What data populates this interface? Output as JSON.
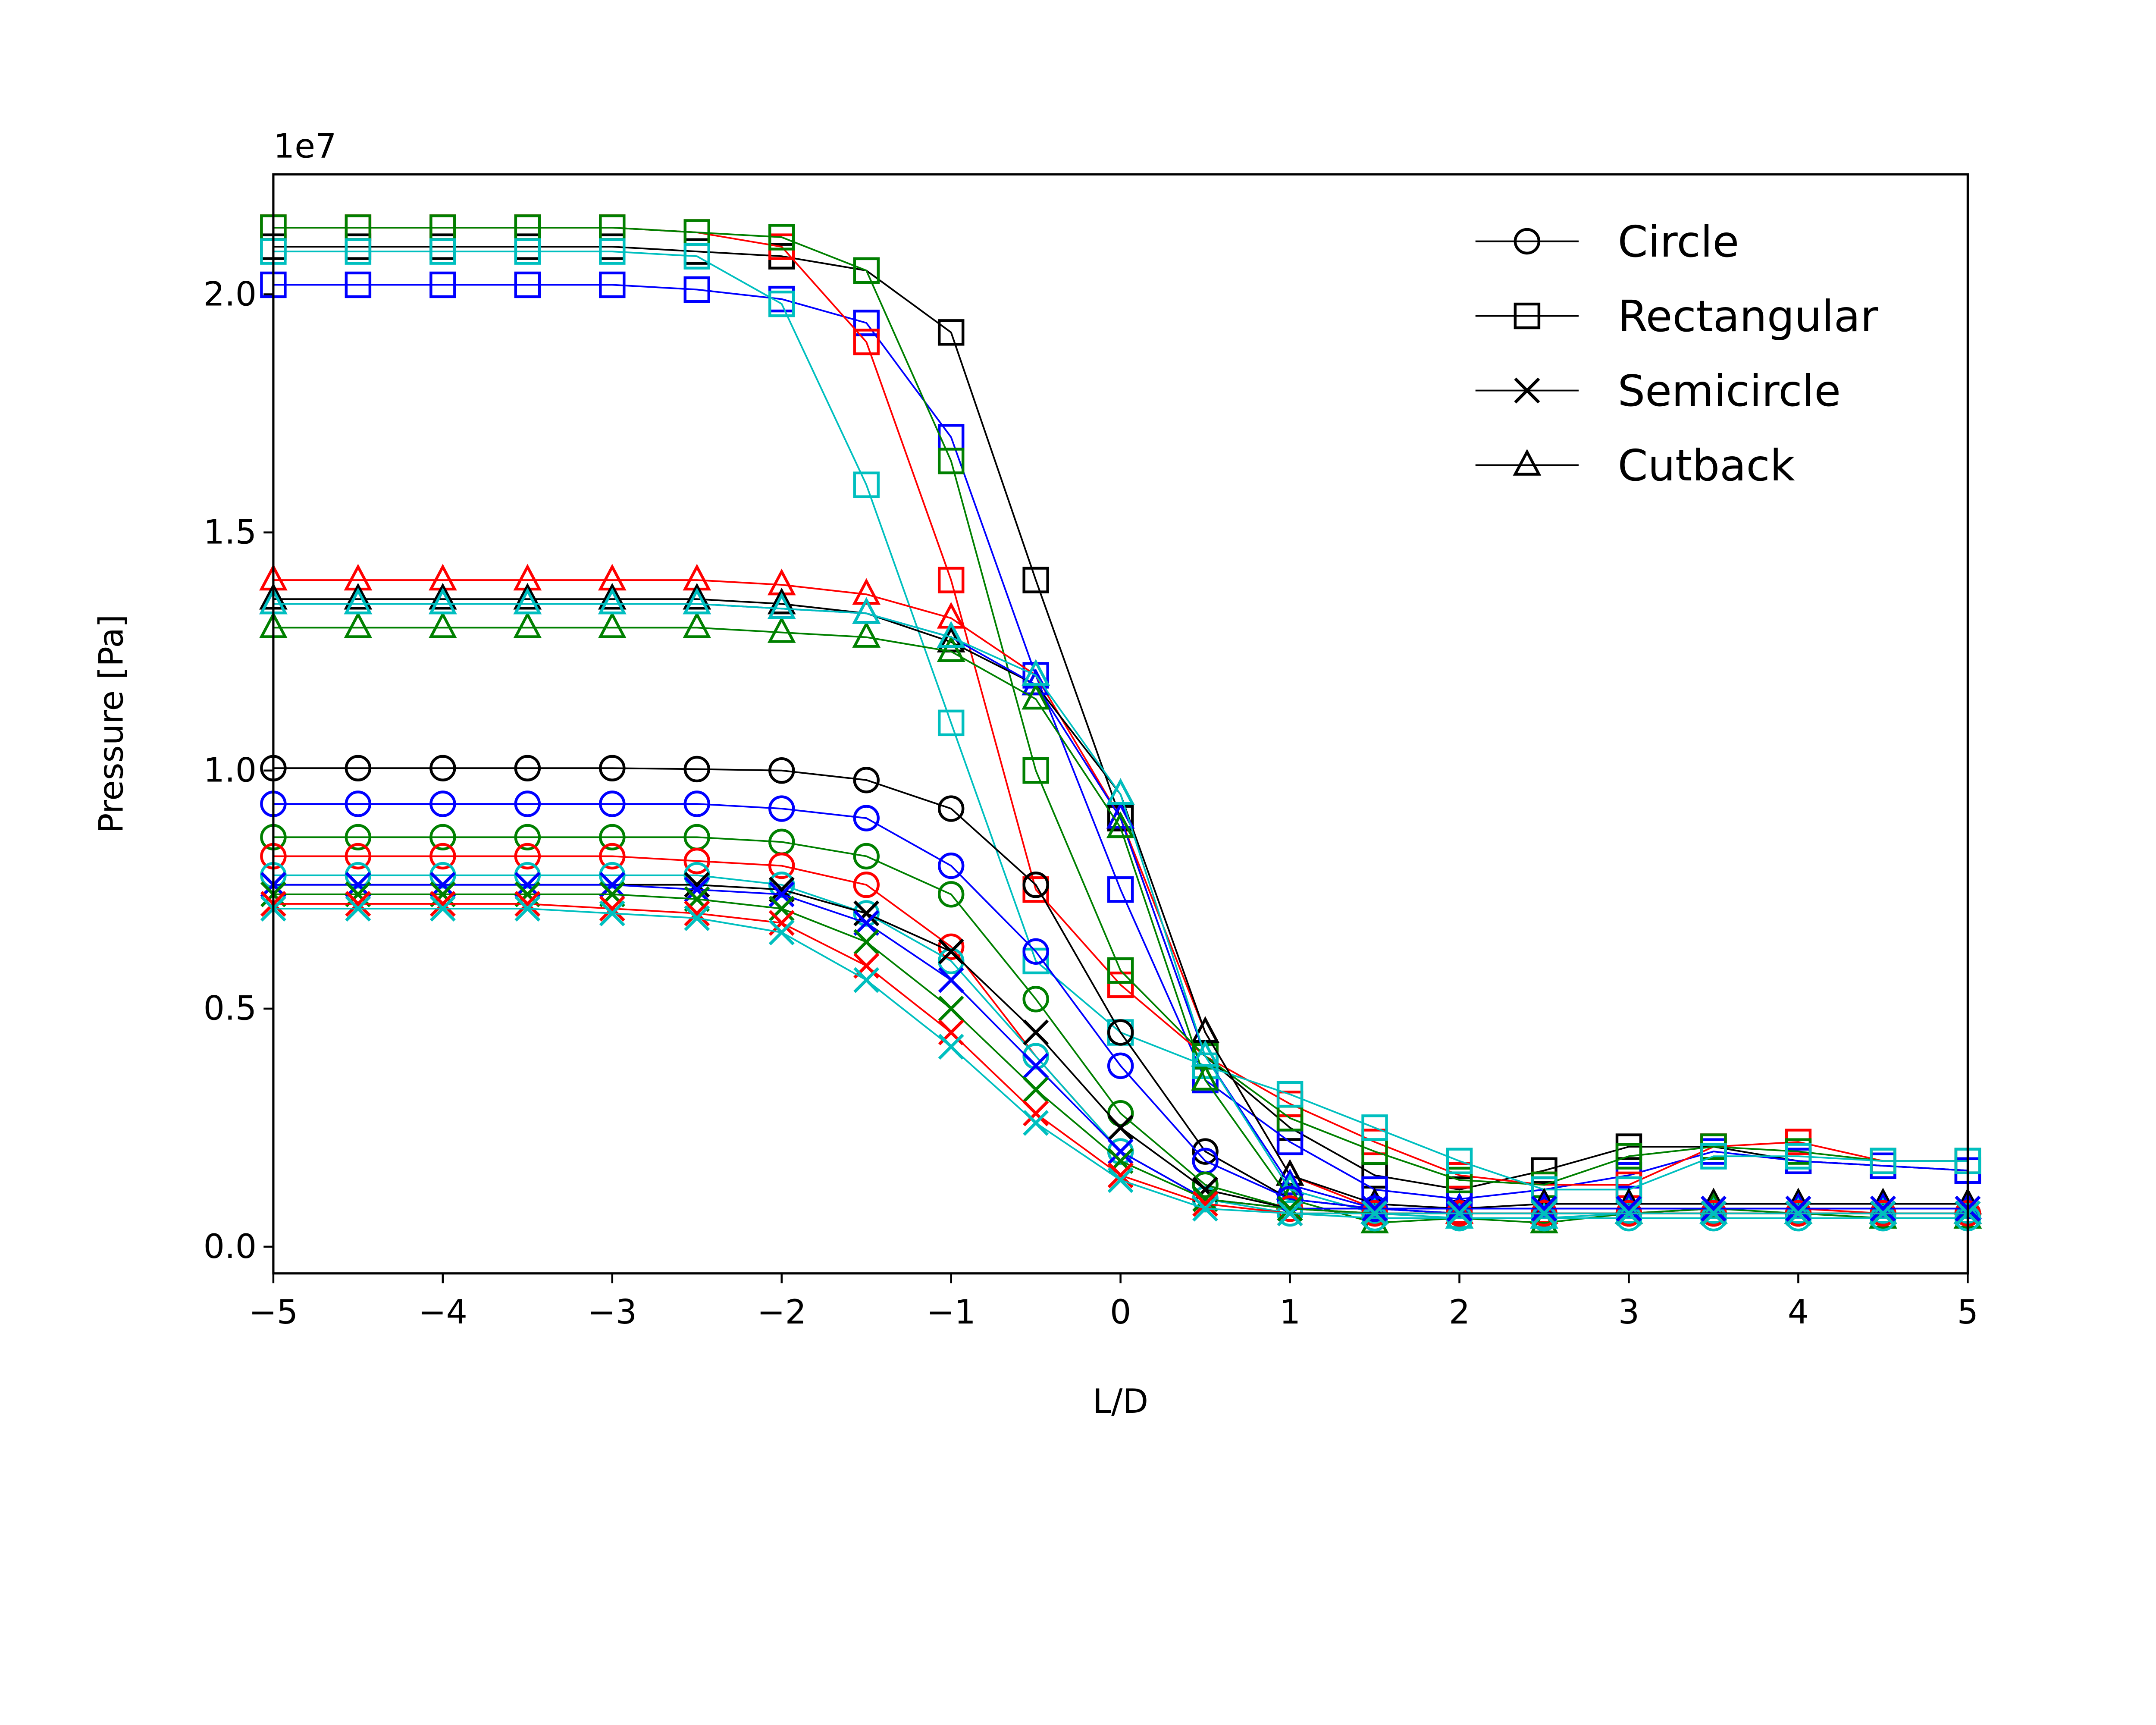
{
  "chart_data": {
    "type": "line",
    "title": "",
    "xlabel": "L/D",
    "ylabel": "Pressure [Pa]",
    "y_offset_label": "1e7",
    "y_scale": 10000000,
    "xlim": [
      -5,
      5
    ],
    "ylim": [
      -0.056,
      2.252
    ],
    "grid": false,
    "legend_placement": "top-right",
    "x_ticks": [
      -5,
      -4,
      -3,
      -2,
      -1,
      0,
      1,
      2,
      3,
      4,
      5
    ],
    "x_tick_labels": [
      "−5",
      "−4",
      "−3",
      "−2",
      "−1",
      "0",
      "1",
      "2",
      "3",
      "4",
      "5"
    ],
    "y_ticks": [
      0,
      0.5,
      1.0,
      1.5,
      2.0
    ],
    "y_tick_labels": [
      "0.0",
      "0.5",
      "1.0",
      "1.5",
      "2.0"
    ],
    "legend": [
      {
        "label": "Circle",
        "marker": "circle"
      },
      {
        "label": "Rectangular",
        "marker": "square"
      },
      {
        "label": "Semicircle",
        "marker": "x"
      },
      {
        "label": "Cutback",
        "marker": "triangle"
      }
    ],
    "colors": {
      "black": "#000000",
      "blue": "#0000ff",
      "red": "#ff0000",
      "green": "#008000",
      "cyan": "#00bfbf"
    },
    "x": [
      -5,
      -4.5,
      -4,
      -3.5,
      -3,
      -2.5,
      -2,
      -1.5,
      -1,
      -0.5,
      0,
      0.5,
      1,
      1.5,
      2,
      2.5,
      3,
      3.5,
      4,
      4.5,
      5
    ],
    "series": [
      {
        "shape": "Rectangular",
        "color": "black",
        "marker": "square",
        "values": [
          2.1,
          2.1,
          2.1,
          2.1,
          2.1,
          2.09,
          2.08,
          2.05,
          1.92,
          1.4,
          0.9,
          0.4,
          0.25,
          0.15,
          0.12,
          0.16,
          0.21,
          0.21,
          0.18,
          0.17,
          0.16
        ]
      },
      {
        "shape": "Rectangular",
        "color": "blue",
        "marker": "square",
        "values": [
          2.02,
          2.02,
          2.02,
          2.02,
          2.02,
          2.01,
          1.99,
          1.94,
          1.7,
          1.2,
          0.75,
          0.35,
          0.22,
          0.12,
          0.1,
          0.12,
          0.15,
          0.2,
          0.18,
          0.17,
          0.16
        ]
      },
      {
        "shape": "Rectangular",
        "color": "red",
        "marker": "square",
        "values": [
          2.14,
          2.14,
          2.14,
          2.14,
          2.14,
          2.13,
          2.1,
          1.9,
          1.4,
          0.75,
          0.55,
          0.4,
          0.3,
          0.22,
          0.15,
          0.13,
          0.13,
          0.21,
          0.22,
          0.18,
          0.18
        ]
      },
      {
        "shape": "Rectangular",
        "color": "green",
        "marker": "square",
        "values": [
          2.14,
          2.14,
          2.14,
          2.14,
          2.14,
          2.13,
          2.12,
          2.05,
          1.65,
          1.0,
          0.58,
          0.4,
          0.27,
          0.2,
          0.14,
          0.13,
          0.19,
          0.21,
          0.2,
          0.18,
          0.18
        ]
      },
      {
        "shape": "Rectangular",
        "color": "cyan",
        "marker": "square",
        "values": [
          2.09,
          2.09,
          2.09,
          2.09,
          2.09,
          2.08,
          1.98,
          1.6,
          1.1,
          0.6,
          0.45,
          0.38,
          0.32,
          0.25,
          0.18,
          0.12,
          0.12,
          0.19,
          0.19,
          0.18,
          0.18
        ]
      },
      {
        "shape": "Cutback",
        "color": "red",
        "marker": "triangle",
        "values": [
          1.4,
          1.4,
          1.4,
          1.4,
          1.4,
          1.4,
          1.39,
          1.37,
          1.32,
          1.2,
          0.9,
          0.45,
          0.15,
          0.08,
          0.07,
          0.07,
          0.07,
          0.08,
          0.08,
          0.07,
          0.07
        ]
      },
      {
        "shape": "Cutback",
        "color": "black",
        "marker": "triangle",
        "values": [
          1.36,
          1.36,
          1.36,
          1.36,
          1.36,
          1.36,
          1.35,
          1.33,
          1.27,
          1.18,
          0.95,
          0.45,
          0.15,
          0.09,
          0.08,
          0.09,
          0.09,
          0.09,
          0.09,
          0.09,
          0.09
        ]
      },
      {
        "shape": "Cutback",
        "color": "blue",
        "marker": "triangle",
        "values": [
          1.35,
          1.35,
          1.35,
          1.35,
          1.35,
          1.35,
          1.34,
          1.33,
          1.28,
          1.18,
          0.9,
          0.4,
          0.13,
          0.08,
          0.08,
          0.08,
          0.08,
          0.08,
          0.08,
          0.08,
          0.08
        ]
      },
      {
        "shape": "Cutback",
        "color": "green",
        "marker": "triangle",
        "values": [
          1.3,
          1.3,
          1.3,
          1.3,
          1.3,
          1.3,
          1.29,
          1.28,
          1.25,
          1.15,
          0.88,
          0.35,
          0.1,
          0.05,
          0.06,
          0.05,
          0.07,
          0.08,
          0.07,
          0.06,
          0.06
        ]
      },
      {
        "shape": "Cutback",
        "color": "cyan",
        "marker": "triangle",
        "values": [
          1.35,
          1.35,
          1.35,
          1.35,
          1.35,
          1.35,
          1.34,
          1.33,
          1.28,
          1.2,
          0.95,
          0.4,
          0.12,
          0.07,
          0.06,
          0.06,
          0.07,
          0.07,
          0.07,
          0.07,
          0.07
        ]
      },
      {
        "shape": "Circle",
        "color": "black",
        "marker": "circle",
        "values": [
          1.005,
          1.005,
          1.005,
          1.005,
          1.005,
          1.003,
          1.0,
          0.98,
          0.92,
          0.76,
          0.45,
          0.2,
          0.1,
          0.08,
          0.07,
          0.07,
          0.07,
          0.07,
          0.07,
          0.07,
          0.07
        ]
      },
      {
        "shape": "Circle",
        "color": "blue",
        "marker": "circle",
        "values": [
          0.93,
          0.93,
          0.93,
          0.93,
          0.93,
          0.93,
          0.92,
          0.9,
          0.8,
          0.62,
          0.38,
          0.18,
          0.1,
          0.08,
          0.07,
          0.07,
          0.07,
          0.07,
          0.07,
          0.07,
          0.07
        ]
      },
      {
        "shape": "Circle",
        "color": "green",
        "marker": "circle",
        "values": [
          0.86,
          0.86,
          0.86,
          0.86,
          0.86,
          0.86,
          0.85,
          0.82,
          0.74,
          0.52,
          0.28,
          0.13,
          0.08,
          0.07,
          0.07,
          0.07,
          0.07,
          0.07,
          0.07,
          0.07,
          0.07
        ]
      },
      {
        "shape": "Circle",
        "color": "red",
        "marker": "circle",
        "values": [
          0.82,
          0.82,
          0.82,
          0.82,
          0.82,
          0.81,
          0.8,
          0.76,
          0.63,
          0.4,
          0.2,
          0.1,
          0.08,
          0.07,
          0.07,
          0.07,
          0.07,
          0.07,
          0.07,
          0.07,
          0.07
        ]
      },
      {
        "shape": "Circle",
        "color": "cyan",
        "marker": "circle",
        "values": [
          0.78,
          0.78,
          0.78,
          0.78,
          0.78,
          0.78,
          0.76,
          0.7,
          0.6,
          0.4,
          0.2,
          0.1,
          0.07,
          0.06,
          0.06,
          0.06,
          0.06,
          0.06,
          0.06,
          0.06,
          0.06
        ]
      },
      {
        "shape": "Semicircle",
        "color": "black",
        "marker": "x",
        "values": [
          0.76,
          0.76,
          0.76,
          0.76,
          0.76,
          0.76,
          0.75,
          0.7,
          0.62,
          0.45,
          0.25,
          0.12,
          0.08,
          0.08,
          0.08,
          0.08,
          0.08,
          0.08,
          0.08,
          0.08,
          0.08
        ]
      },
      {
        "shape": "Semicircle",
        "color": "blue",
        "marker": "x",
        "values": [
          0.76,
          0.76,
          0.76,
          0.76,
          0.76,
          0.75,
          0.74,
          0.68,
          0.56,
          0.38,
          0.2,
          0.1,
          0.08,
          0.08,
          0.08,
          0.08,
          0.08,
          0.08,
          0.08,
          0.08,
          0.08
        ]
      },
      {
        "shape": "Semicircle",
        "color": "green",
        "marker": "x",
        "values": [
          0.74,
          0.74,
          0.74,
          0.74,
          0.74,
          0.73,
          0.71,
          0.64,
          0.5,
          0.33,
          0.18,
          0.1,
          0.08,
          0.07,
          0.07,
          0.07,
          0.07,
          0.07,
          0.07,
          0.07,
          0.07
        ]
      },
      {
        "shape": "Semicircle",
        "color": "red",
        "marker": "x",
        "values": [
          0.72,
          0.72,
          0.72,
          0.72,
          0.71,
          0.7,
          0.68,
          0.59,
          0.45,
          0.28,
          0.15,
          0.09,
          0.07,
          0.07,
          0.07,
          0.07,
          0.07,
          0.07,
          0.07,
          0.07,
          0.07
        ]
      },
      {
        "shape": "Semicircle",
        "color": "cyan",
        "marker": "x",
        "values": [
          0.71,
          0.71,
          0.71,
          0.71,
          0.7,
          0.69,
          0.66,
          0.56,
          0.42,
          0.26,
          0.14,
          0.08,
          0.07,
          0.07,
          0.07,
          0.07,
          0.07,
          0.07,
          0.07,
          0.07,
          0.07
        ]
      }
    ]
  }
}
